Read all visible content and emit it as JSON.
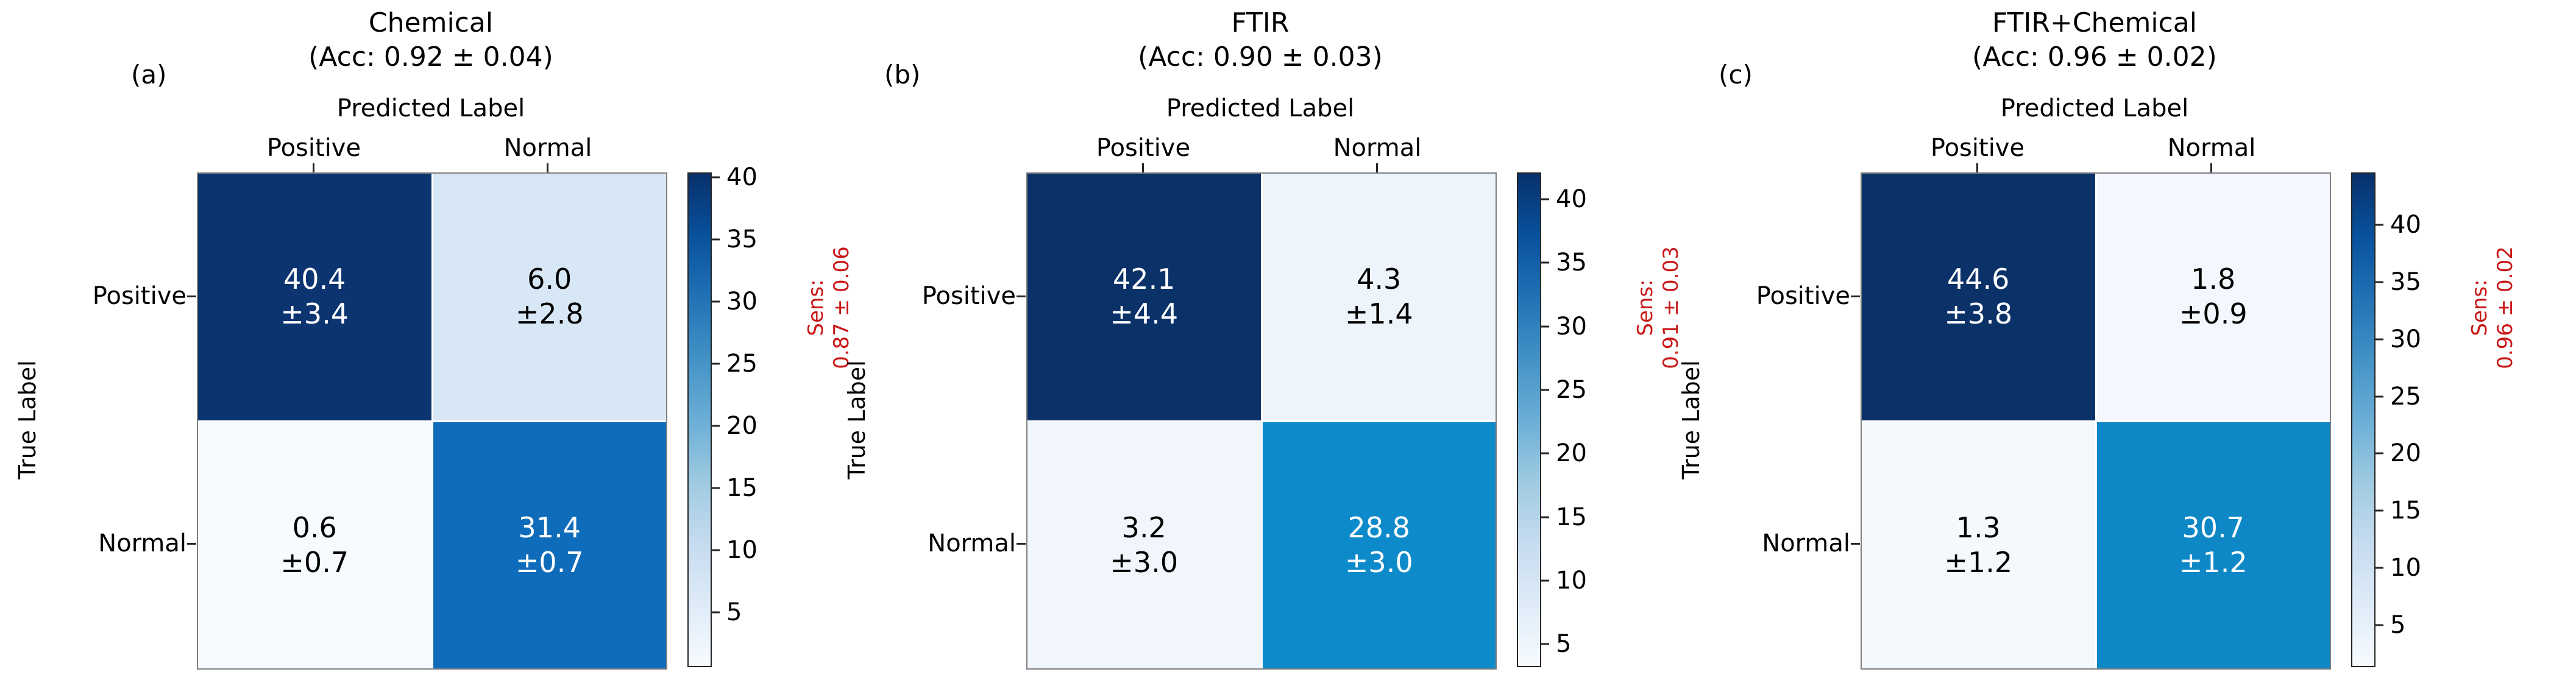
{
  "figure": {
    "background": "#ffffff",
    "sens_color": "#c81616",
    "panels": [
      {
        "letter": "(a)",
        "title_line1": "Chemical",
        "title_line2": "(Acc: 0.92 ± 0.04)",
        "xaxis_label": "Predicted Label",
        "yaxis_label": "True Label",
        "col_labels": [
          "Positive",
          "Normal"
        ],
        "row_labels": [
          "Positive",
          "Normal"
        ],
        "sens_line1": "Sens:",
        "sens_line2": "0.87 ± 0.06",
        "cells": [
          {
            "value": "40.4",
            "err": "±3.4",
            "bg": "#0b3470",
            "fg": "#ffffff"
          },
          {
            "value": "6.0",
            "err": "±2.8",
            "bg": "#d8e7f5",
            "fg": "#000000"
          },
          {
            "value": "0.6",
            "err": "±0.7",
            "bg": "#f7fbff",
            "fg": "#000000"
          },
          {
            "value": "31.4",
            "err": "±0.7",
            "bg": "#0f6cba",
            "fg": "#ffffff"
          }
        ],
        "colorbar": {
          "vmin": 0.6,
          "vmax": 40.4,
          "ticks": [
            40,
            35,
            30,
            25,
            20,
            15,
            10,
            5
          ]
        }
      },
      {
        "letter": "(b)",
        "title_line1": "FTIR",
        "title_line2": "(Acc: 0.90 ± 0.03)",
        "xaxis_label": "Predicted Label",
        "yaxis_label": "True Label",
        "col_labels": [
          "Positive",
          "Normal"
        ],
        "row_labels": [
          "Positive",
          "Normal"
        ],
        "sens_line1": "Sens:",
        "sens_line2": "0.91 ± 0.03",
        "cells": [
          {
            "value": "42.1",
            "err": "±4.4",
            "bg": "#0a3168",
            "fg": "#ffffff"
          },
          {
            "value": "4.3",
            "err": "±1.4",
            "bg": "#edf4fb",
            "fg": "#000000"
          },
          {
            "value": "3.2",
            "err": "±3.0",
            "bg": "#f0f6fc",
            "fg": "#000000"
          },
          {
            "value": "28.8",
            "err": "±3.0",
            "bg": "#0d8aca",
            "fg": "#ffffff"
          }
        ],
        "colorbar": {
          "vmin": 3.2,
          "vmax": 42.1,
          "ticks": [
            40,
            35,
            30,
            25,
            20,
            15,
            10,
            5
          ]
        }
      },
      {
        "letter": "(c)",
        "title_line1": "FTIR+Chemical",
        "title_line2": "(Acc: 0.96 ± 0.02)",
        "xaxis_label": "Predicted Label",
        "yaxis_label": "True Label",
        "col_labels": [
          "Positive",
          "Normal"
        ],
        "row_labels": [
          "Positive",
          "Normal"
        ],
        "sens_line1": "Sens:",
        "sens_line2": "0.96 ± 0.02",
        "cells": [
          {
            "value": "44.6",
            "err": "±3.8",
            "bg": "#0a3168",
            "fg": "#ffffff"
          },
          {
            "value": "1.8",
            "err": "±0.9",
            "bg": "#f2f8fd",
            "fg": "#000000"
          },
          {
            "value": "1.3",
            "err": "±1.2",
            "bg": "#f4f9fe",
            "fg": "#000000"
          },
          {
            "value": "30.7",
            "err": "±1.2",
            "bg": "#0e87c6",
            "fg": "#ffffff"
          }
        ],
        "colorbar": {
          "vmin": 1.3,
          "vmax": 44.6,
          "ticks": [
            40,
            35,
            30,
            25,
            20,
            15,
            10,
            5
          ]
        }
      }
    ]
  },
  "chart_data": [
    {
      "type": "heatmap",
      "panel": "(a)",
      "title": "Chemical",
      "accuracy": "0.92 ± 0.04",
      "sensitivity": "0.87 ± 0.06",
      "xlabel": "Predicted Label",
      "ylabel": "True Label",
      "x_categories": [
        "Positive",
        "Normal"
      ],
      "y_categories": [
        "Positive",
        "Normal"
      ],
      "values": [
        [
          40.4,
          6.0
        ],
        [
          0.6,
          31.4
        ]
      ],
      "errors": [
        [
          3.4,
          2.8
        ],
        [
          0.7,
          0.7
        ]
      ],
      "colormap": "Blues",
      "colorbar_ticks": [
        5,
        10,
        15,
        20,
        25,
        30,
        35,
        40
      ],
      "colorbar_range": [
        0.6,
        40.4
      ],
      "legend_position": "right-colorbar",
      "grid": false
    },
    {
      "type": "heatmap",
      "panel": "(b)",
      "title": "FTIR",
      "accuracy": "0.90 ± 0.03",
      "sensitivity": "0.91 ± 0.03",
      "xlabel": "Predicted Label",
      "ylabel": "True Label",
      "x_categories": [
        "Positive",
        "Normal"
      ],
      "y_categories": [
        "Positive",
        "Normal"
      ],
      "values": [
        [
          42.1,
          4.3
        ],
        [
          3.2,
          28.8
        ]
      ],
      "errors": [
        [
          4.4,
          1.4
        ],
        [
          3.0,
          3.0
        ]
      ],
      "colormap": "Blues",
      "colorbar_ticks": [
        5,
        10,
        15,
        20,
        25,
        30,
        35,
        40
      ],
      "colorbar_range": [
        3.2,
        42.1
      ],
      "legend_position": "right-colorbar",
      "grid": false
    },
    {
      "type": "heatmap",
      "panel": "(c)",
      "title": "FTIR+Chemical",
      "accuracy": "0.96 ± 0.02",
      "sensitivity": "0.96 ± 0.02",
      "xlabel": "Predicted Label",
      "ylabel": "True Label",
      "x_categories": [
        "Positive",
        "Normal"
      ],
      "y_categories": [
        "Positive",
        "Normal"
      ],
      "values": [
        [
          44.6,
          1.8
        ],
        [
          1.3,
          30.7
        ]
      ],
      "errors": [
        [
          3.8,
          0.9
        ],
        [
          1.2,
          1.2
        ]
      ],
      "colormap": "Blues",
      "colorbar_ticks": [
        5,
        10,
        15,
        20,
        25,
        30,
        35,
        40
      ],
      "colorbar_range": [
        1.3,
        44.6
      ],
      "legend_position": "right-colorbar",
      "grid": false
    }
  ]
}
